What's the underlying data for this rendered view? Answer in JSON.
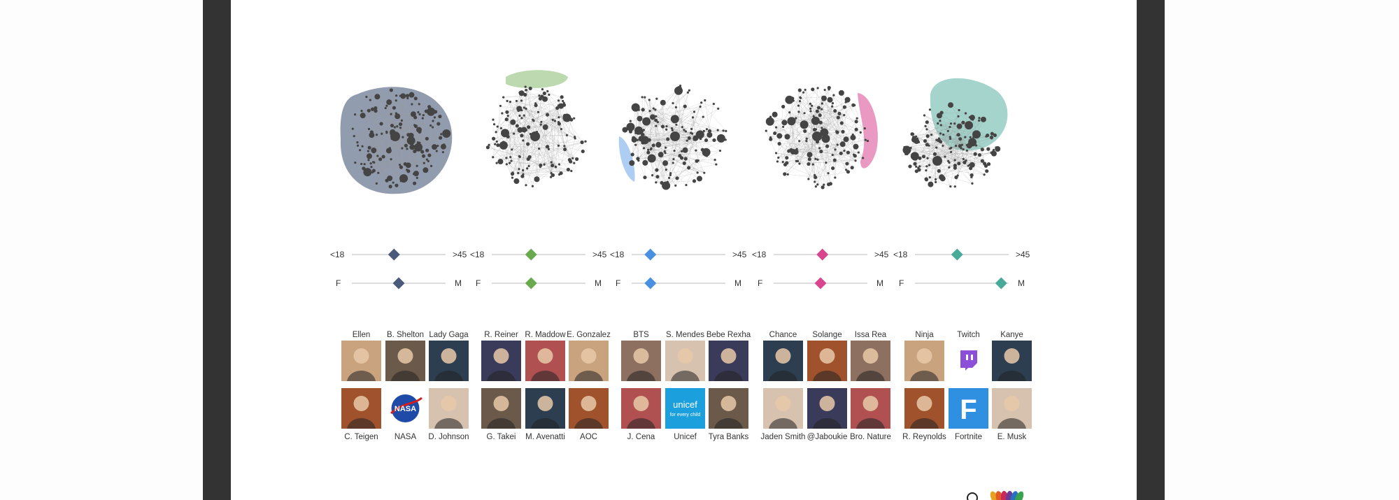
{
  "groups": [
    {
      "color": "#4a5a7a",
      "age": {
        "min_label": "<18",
        "max_label": ">45",
        "value": 0.45
      },
      "gender": {
        "min_label": "F",
        "max_label": "M",
        "value": 0.5
      },
      "accounts": [
        {
          "name": "Ellen",
          "icon": "avatar-icon"
        },
        {
          "name": "B. Shelton",
          "icon": "avatar-icon"
        },
        {
          "name": "Lady Gaga",
          "icon": "avatar-icon"
        },
        {
          "name": "C. Teigen",
          "icon": "avatar-icon"
        },
        {
          "name": "NASA",
          "icon": "nasa-logo-icon"
        },
        {
          "name": "D. Johnson",
          "icon": "avatar-icon"
        }
      ]
    },
    {
      "color": "#6aaa4e",
      "age": {
        "min_label": "<18",
        "max_label": ">45",
        "value": 0.42
      },
      "gender": {
        "min_label": "F",
        "max_label": "M",
        "value": 0.42
      },
      "accounts": [
        {
          "name": "R. Reiner",
          "icon": "avatar-icon"
        },
        {
          "name": "R. Maddow",
          "icon": "avatar-icon"
        },
        {
          "name": "E. Gonzalez",
          "icon": "avatar-icon"
        },
        {
          "name": "G. Takei",
          "icon": "avatar-icon"
        },
        {
          "name": "M. Avenatti",
          "icon": "avatar-icon"
        },
        {
          "name": "AOC",
          "icon": "avatar-icon"
        }
      ]
    },
    {
      "color": "#4a90e2",
      "age": {
        "min_label": "<18",
        "max_label": ">45",
        "value": 0.2
      },
      "gender": {
        "min_label": "F",
        "max_label": "M",
        "value": 0.2
      },
      "accounts": [
        {
          "name": "BTS",
          "icon": "avatar-icon"
        },
        {
          "name": "S. Mendes",
          "icon": "avatar-icon"
        },
        {
          "name": "Bebe Rexha",
          "icon": "avatar-icon"
        },
        {
          "name": "J. Cena",
          "icon": "avatar-icon"
        },
        {
          "name": "Unicef",
          "icon": "unicef-logo-icon",
          "logo_text": "unicef",
          "logo_sub": "for every child"
        },
        {
          "name": "Tyra Banks",
          "icon": "avatar-icon"
        }
      ]
    },
    {
      "color": "#d9468f",
      "age": {
        "min_label": "<18",
        "max_label": ">45",
        "value": 0.52
      },
      "gender": {
        "min_label": "F",
        "max_label": "M",
        "value": 0.5
      },
      "accounts": [
        {
          "name": "Chance",
          "icon": "avatar-icon"
        },
        {
          "name": "Solange",
          "icon": "avatar-icon"
        },
        {
          "name": "Issa Rea",
          "icon": "avatar-icon"
        },
        {
          "name": "Jaden Smith",
          "icon": "avatar-icon"
        },
        {
          "name": "@Jaboukie",
          "icon": "avatar-icon"
        },
        {
          "name": "Bro. Nature",
          "icon": "avatar-icon"
        }
      ]
    },
    {
      "color": "#4aaa99",
      "age": {
        "min_label": "<18",
        "max_label": ">45",
        "value": 0.45
      },
      "gender": {
        "min_label": "F",
        "max_label": "M",
        "value": 0.92
      },
      "accounts": [
        {
          "name": "Ninja",
          "icon": "avatar-icon"
        },
        {
          "name": "Twitch",
          "icon": "twitch-logo-icon"
        },
        {
          "name": "Kanye",
          "icon": "avatar-icon"
        },
        {
          "name": "R. Reynolds",
          "icon": "avatar-icon"
        },
        {
          "name": "Fortnite",
          "icon": "fortnite-logo-icon",
          "logo_text": "F"
        },
        {
          "name": "E. Musk",
          "icon": "avatar-icon"
        }
      ]
    }
  ]
}
